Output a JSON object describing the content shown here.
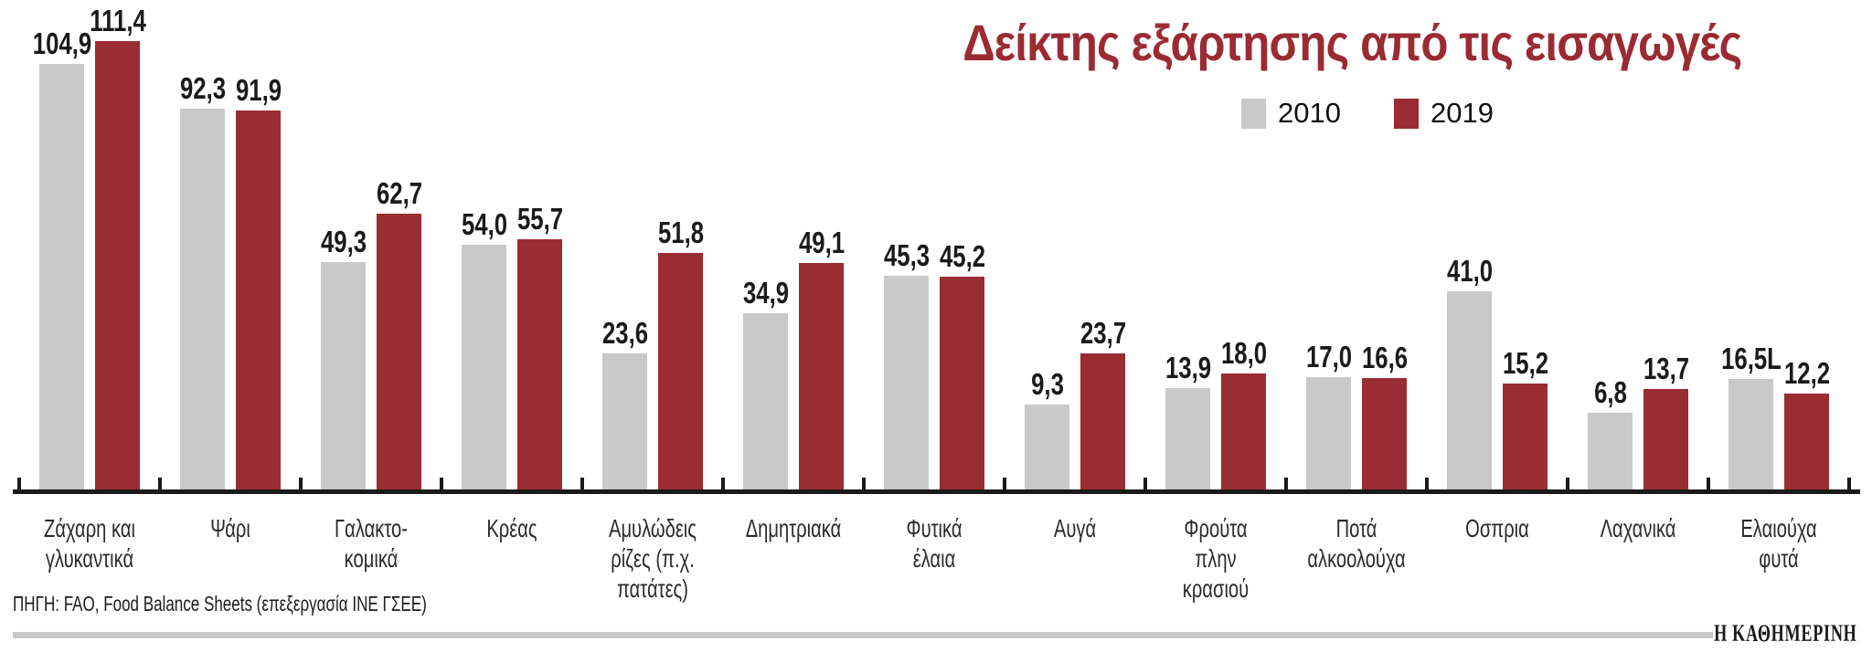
{
  "chart_data": {
    "type": "bar",
    "title": "Δείκτης εξάρτησης από τις εισαγωγές",
    "categories": [
      "Ζάχαρη και\nγλυκαντικά",
      "Ψάρι",
      "Γαλακτο-\nκομικά",
      "Κρέας",
      "Αμυλώδεις\nρίζες (π.χ.\nπατάτες)",
      "Δημητριακά",
      "Φυτικά\nέλαια",
      "Αυγά",
      "Φρούτα\nπλην\nκρασιού",
      "Ποτά\nαλκοολούχα",
      "Οσπρια",
      "Λαχανικά",
      "Ελαιούχα\nφυτά"
    ],
    "series": [
      {
        "name": "2010",
        "color": "#c9c9c9",
        "values": [
          104.9,
          92.3,
          49.3,
          54.0,
          23.6,
          34.9,
          45.3,
          9.3,
          13.9,
          17.0,
          41.0,
          6.8,
          16.5
        ],
        "labels": [
          "104,9",
          "92,3",
          "49,3",
          "54,0",
          "23,6",
          "34,9",
          "45,3",
          "9,3",
          "13,9",
          "17,0",
          "41,0",
          "6,8",
          "16,5L"
        ]
      },
      {
        "name": "2019",
        "color": "#9a2c33",
        "values": [
          111.4,
          91.9,
          62.7,
          55.7,
          51.8,
          49.1,
          45.2,
          23.7,
          18.0,
          16.6,
          15.2,
          13.7,
          12.2
        ],
        "labels": [
          "111,4",
          "91,9",
          "62,7",
          "55,7",
          "51,8",
          "49,1",
          "45,2",
          "23,7",
          "18,0",
          "16,6",
          "15,2",
          "13,7",
          "12,2"
        ]
      }
    ],
    "legend_position": "top-right-below-title",
    "grid": false,
    "value_label_decimal_separator": ",",
    "ylim": [
      0,
      115
    ]
  },
  "source_note": "ΠΗΓΗ: FAO, Food Balance Sheets (επεξεργασία ΙΝΕ ΓΣΕΕ)",
  "footer": {
    "brand": "Η ΚΑΘΗΜΕΡΙΝΗ"
  },
  "colors": {
    "accent_red": "#9a2c33",
    "title_red": "#9b2b33",
    "bar_gray": "#c9c9c9",
    "axis_black": "#1a1a1a",
    "footer_bar_gray": "#c9c9c9"
  }
}
